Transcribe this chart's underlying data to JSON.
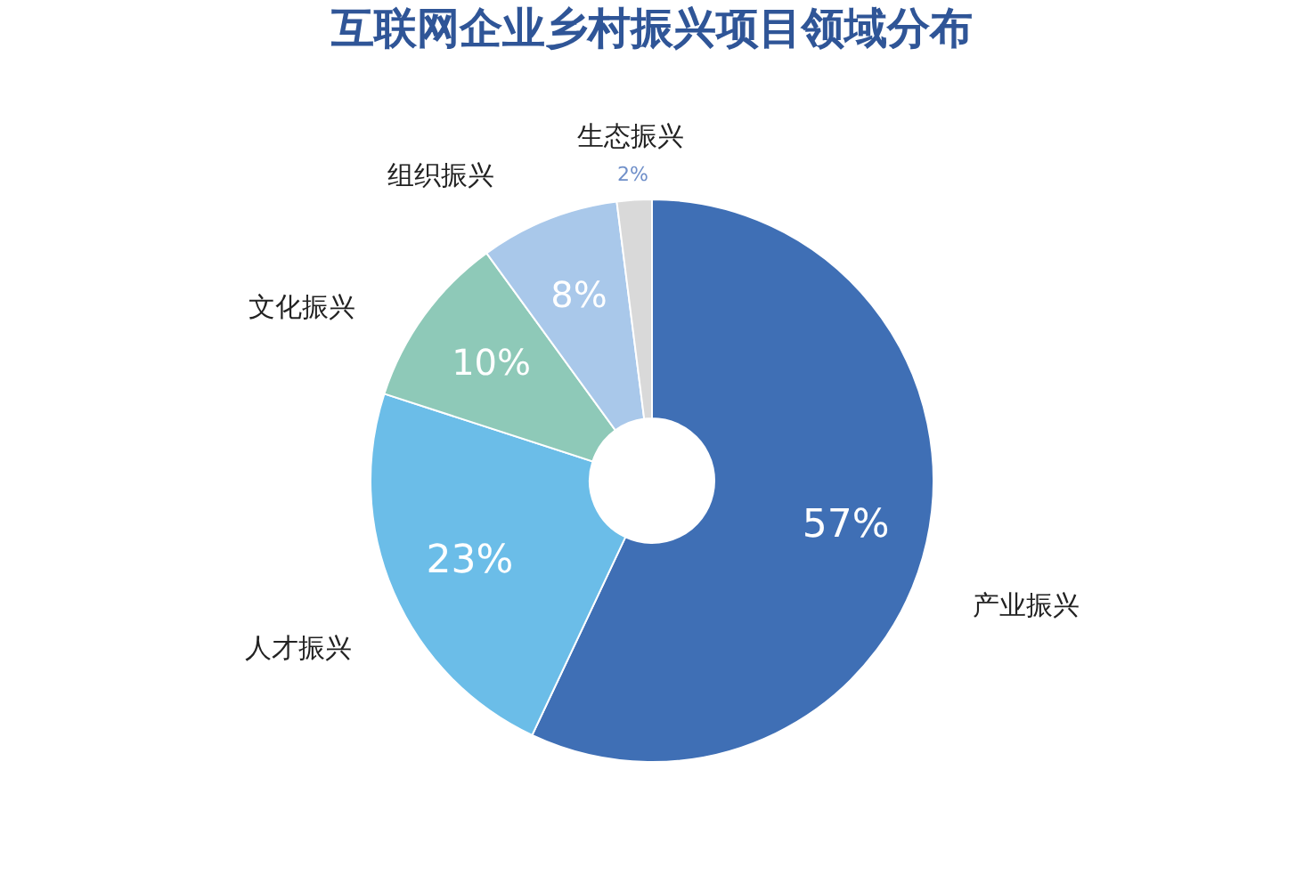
{
  "chart_data": {
    "type": "donut",
    "title": "互联网企业乡村振兴项目领域分布",
    "categories": [
      "产业振兴",
      "人才振兴",
      "文化振兴",
      "组织振兴",
      "生态振兴"
    ],
    "values": [
      57,
      23,
      10,
      8,
      2
    ],
    "value_labels": [
      "57%",
      "23%",
      "10%",
      "8%",
      "2%"
    ],
    "colors": [
      "#3f6fb5",
      "#6bbde8",
      "#8ec9b8",
      "#a9c8ea",
      "#d9d9d9"
    ],
    "legend": false
  }
}
